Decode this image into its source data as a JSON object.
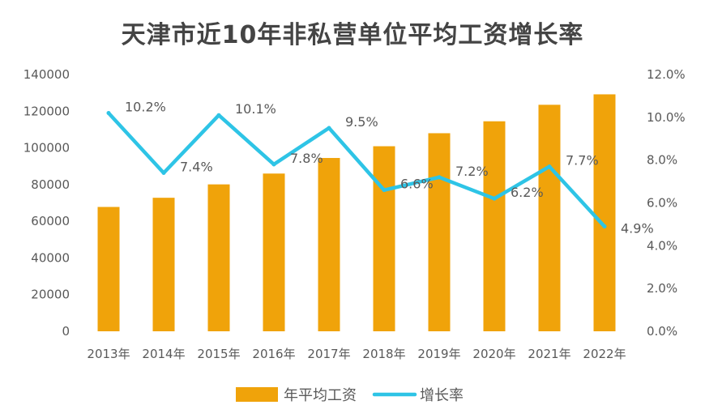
{
  "chart_data": {
    "type": "bar+line",
    "title": "天津市近10年非私营单位平均工资增长率",
    "categories": [
      "2013年",
      "2014年",
      "2015年",
      "2016年",
      "2017年",
      "2018年",
      "2019年",
      "2020年",
      "2021年",
      "2022年"
    ],
    "series": [
      {
        "name": "年平均工资",
        "type": "bar",
        "axis": "left",
        "color": "#F0A30A",
        "values": [
          67800,
          72800,
          80100,
          86000,
          94500,
          100900,
          108000,
          114500,
          123500,
          129200
        ]
      },
      {
        "name": "增长率",
        "type": "line",
        "axis": "right",
        "color": "#2EC4E6",
        "values": [
          10.2,
          7.4,
          10.1,
          7.8,
          9.5,
          6.6,
          7.2,
          6.2,
          7.7,
          4.9
        ],
        "labels": [
          "10.2%",
          "7.4%",
          "10.1%",
          "7.8%",
          "9.5%",
          "6.6%",
          "7.2%",
          "6.2%",
          "7.7%",
          "4.9%"
        ]
      }
    ],
    "y_left": {
      "min": 0,
      "max": 140000,
      "ticks": [
        "0",
        "20000",
        "40000",
        "60000",
        "80000",
        "100000",
        "120000",
        "140000"
      ]
    },
    "y_right": {
      "min": 0,
      "max": 12,
      "ticks": [
        "0.0%",
        "2.0%",
        "4.0%",
        "6.0%",
        "8.0%",
        "10.0%",
        "12.0%"
      ]
    },
    "grid": false,
    "legend_position": "bottom"
  }
}
